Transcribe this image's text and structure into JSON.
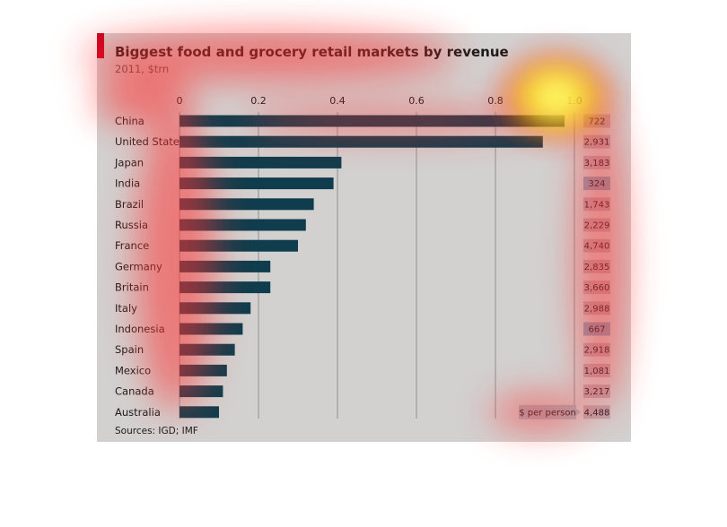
{
  "chart_data": {
    "type": "bar",
    "orientation": "horizontal",
    "title": "Biggest food and grocery retail markets by revenue",
    "subtitle": "2011, $trn",
    "source": "Sources: IGD; IMF",
    "xlim": [
      0,
      1.0
    ],
    "x_ticks": [
      "0",
      "0.2",
      "0.4",
      "0.6",
      "0.8",
      "1.0"
    ],
    "grid": "vertical",
    "categories": [
      "China",
      "United States",
      "Japan",
      "India",
      "Brazil",
      "Russia",
      "France",
      "Germany",
      "Britain",
      "Italy",
      "Indonesia",
      "Spain",
      "Mexico",
      "Canada",
      "Australia"
    ],
    "values": [
      0.975,
      0.92,
      0.41,
      0.39,
      0.34,
      0.32,
      0.3,
      0.23,
      0.23,
      0.18,
      0.16,
      0.14,
      0.12,
      0.11,
      0.1
    ],
    "per_person_label": "$ per person",
    "per_person": [
      "722",
      "2,931",
      "3,183",
      "324",
      "1,743",
      "2,229",
      "4,740",
      "2,835",
      "3,660",
      "2,988",
      "667",
      "2,918",
      "1,081",
      "3,217",
      "4,488"
    ],
    "per_person_highlight": [
      false,
      false,
      false,
      true,
      false,
      false,
      false,
      false,
      false,
      false,
      true,
      false,
      false,
      false,
      false
    ],
    "colors": {
      "bar": "#103d4d",
      "grid": "#909090",
      "label_box": "#b8a8b0",
      "label_box_low": "#86a3b8",
      "accent": "#c6001e",
      "background": "#d2d1d0"
    }
  }
}
